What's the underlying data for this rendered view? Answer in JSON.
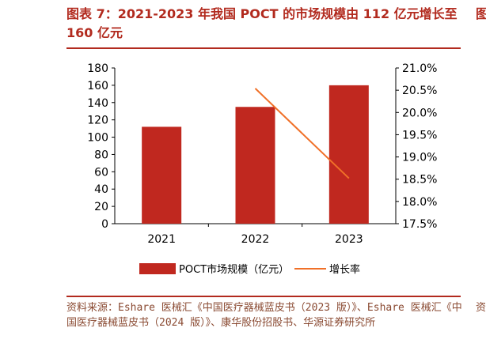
{
  "title": "图表 7：2021-2023 年我国 POCT 的市场规模由 112 亿元增长至 160 亿元",
  "source": "资料来源：Eshare 医械汇《中国医疗器械蓝皮书（2023 版）》、Eshare 医械汇《中国医疗器械蓝皮书（2024 版）》、康华股份招股书、华源证券研究所",
  "colors": {
    "accent": "#b22a1e",
    "bar": "#c0281f",
    "line": "#f07028",
    "source": "#8a4a32"
  },
  "chart_data": {
    "type": "bar",
    "categories": [
      "2021",
      "2022",
      "2023"
    ],
    "series": [
      {
        "name": "POCT市场规模（亿元）",
        "type": "bar",
        "axis": "left",
        "values": [
          112,
          135,
          160
        ]
      },
      {
        "name": "增长率",
        "type": "line",
        "axis": "right",
        "values": [
          null,
          20.54,
          18.52
        ]
      }
    ],
    "ylim": [
      0,
      180
    ],
    "yticks": [
      0,
      20,
      40,
      60,
      80,
      100,
      120,
      140,
      160,
      180
    ],
    "y2lim": [
      17.5,
      21.0
    ],
    "y2ticks": [
      "17.5%",
      "18.0%",
      "18.5%",
      "19.0%",
      "19.5%",
      "20.0%",
      "20.5%",
      "21.0%"
    ],
    "legend": "bottom",
    "grid": false
  }
}
